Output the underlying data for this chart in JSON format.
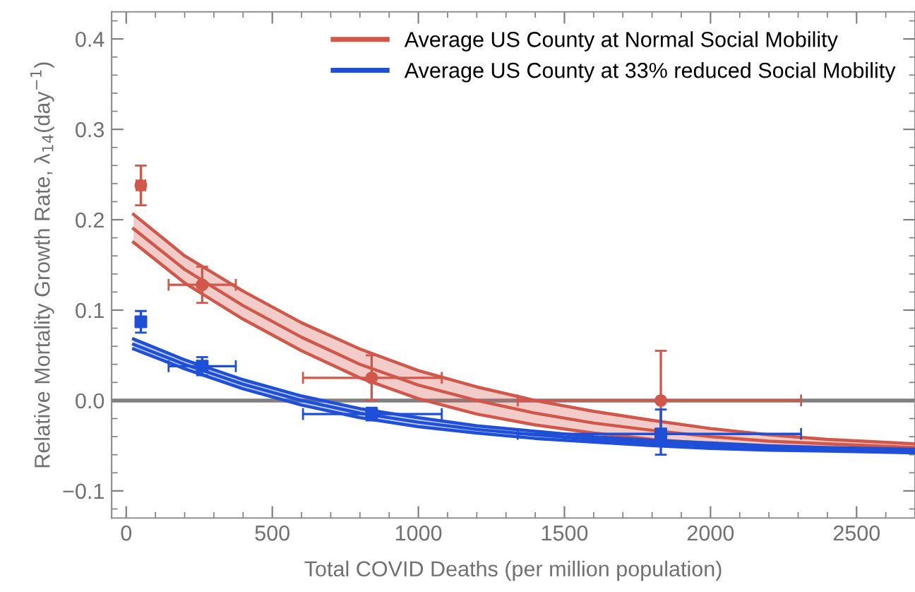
{
  "chart_data": {
    "type": "line",
    "xlabel": "Total COVID Deaths (per million population)",
    "ylabel": "Relative Mortality Growth Rate, λ$_{14}$(day$^{−1}$)",
    "xlim": [
      -50,
      2700
    ],
    "ylim": [
      -0.13,
      0.43
    ],
    "xticks": [
      0,
      500,
      1000,
      1500,
      2000,
      2500
    ],
    "yticks": [
      {
        "value": -0.1,
        "label": "−0.1"
      },
      {
        "value": 0,
        "label": "0.0"
      },
      0.1,
      0.2,
      0.3,
      0.4
    ],
    "grid": false,
    "legend": "top right",
    "ref_lines": [
      {
        "axis": "y",
        "value": 0,
        "color": "#808080"
      }
    ],
    "series": [
      {
        "name": "Average US County at Normal Social Mobility",
        "color": "#d0574a",
        "marker": "none",
        "x": [
          25,
          200,
          400,
          600,
          800,
          1000,
          1200,
          1400,
          1600,
          1800,
          2000,
          2200,
          2400,
          2700
        ],
        "values": [
          0.19,
          0.145,
          0.105,
          0.07,
          0.04,
          0.017,
          0.0,
          -0.014,
          -0.025,
          -0.033,
          -0.04,
          -0.045,
          -0.048,
          -0.052
        ],
        "upper": [
          0.206,
          0.16,
          0.121,
          0.086,
          0.057,
          0.033,
          0.015,
          0.0,
          -0.012,
          -0.022,
          -0.031,
          -0.038,
          -0.043,
          -0.048
        ],
        "lower": [
          0.175,
          0.13,
          0.09,
          0.055,
          0.025,
          0.002,
          -0.015,
          -0.027,
          -0.036,
          -0.043,
          -0.048,
          -0.051,
          -0.053,
          -0.055
        ]
      },
      {
        "color": "#d0574a",
        "marker": "none",
        "x": [
          25,
          200,
          400,
          600,
          800,
          1000,
          1200,
          1400,
          1600,
          1800,
          2000,
          2200,
          2400,
          2700
        ],
        "values": [
          0.206,
          0.16,
          0.121,
          0.086,
          0.057,
          0.033,
          0.015,
          0.0,
          -0.012,
          -0.022,
          -0.031,
          -0.038,
          -0.043,
          -0.048
        ]
      },
      {
        "color": "#d0574a",
        "marker": "none",
        "x": [
          25,
          200,
          400,
          600,
          800,
          1000,
          1200,
          1400,
          1600,
          1800,
          2000,
          2200,
          2400,
          2700
        ],
        "values": [
          0.175,
          0.13,
          0.09,
          0.055,
          0.025,
          0.002,
          -0.015,
          -0.027,
          -0.036,
          -0.043,
          -0.048,
          -0.051,
          -0.053,
          -0.055
        ]
      },
      {
        "name": "Average US County at 33% reduced Social Mobility",
        "color": "#1f4fd6",
        "marker": "none",
        "x": [
          25,
          200,
          400,
          600,
          800,
          1000,
          1200,
          1400,
          1600,
          1800,
          2000,
          2200,
          2400,
          2700
        ],
        "values": [
          0.062,
          0.04,
          0.018,
          0.0,
          -0.014,
          -0.024,
          -0.032,
          -0.038,
          -0.043,
          -0.047,
          -0.05,
          -0.052,
          -0.054,
          -0.056
        ],
        "upper": [
          0.068,
          0.045,
          0.023,
          0.005,
          -0.009,
          -0.019,
          -0.028,
          -0.034,
          -0.04,
          -0.044,
          -0.047,
          -0.05,
          -0.052,
          -0.054
        ],
        "lower": [
          0.057,
          0.035,
          0.013,
          -0.005,
          -0.019,
          -0.029,
          -0.036,
          -0.042,
          -0.046,
          -0.05,
          -0.053,
          -0.055,
          -0.056,
          -0.058
        ]
      },
      {
        "color": "#1f4fd6",
        "marker": "none",
        "x": [
          25,
          200,
          400,
          600,
          800,
          1000,
          1200,
          1400,
          1600,
          1800,
          2000,
          2200,
          2400,
          2700
        ],
        "values": [
          0.068,
          0.045,
          0.023,
          0.005,
          -0.009,
          -0.019,
          -0.028,
          -0.034,
          -0.04,
          -0.044,
          -0.047,
          -0.05,
          -0.052,
          -0.054
        ]
      },
      {
        "color": "#1f4fd6",
        "marker": "none",
        "x": [
          25,
          200,
          400,
          600,
          800,
          1000,
          1200,
          1400,
          1600,
          1800,
          2000,
          2200,
          2400,
          2700
        ],
        "values": [
          0.057,
          0.035,
          0.013,
          -0.005,
          -0.019,
          -0.029,
          -0.036,
          -0.042,
          -0.046,
          -0.05,
          -0.053,
          -0.055,
          -0.056,
          -0.058
        ]
      },
      {
        "type": "scatter",
        "color": "#d0574a",
        "marker": "circle",
        "x": [
          50,
          260,
          840,
          1830
        ],
        "values": [
          0.238,
          0.128,
          0.025,
          0.0
        ],
        "errors": [
          [
            0.216,
            0.26
          ],
          [
            0.108,
            0.148
          ],
          [
            0.0,
            0.05
          ],
          [
            -0.035,
            0.055
          ]
        ],
        "xerrors": [
          [
            35,
            65
          ],
          [
            145,
            375
          ],
          [
            605,
            1080
          ],
          [
            1340,
            2310
          ]
        ]
      },
      {
        "type": "scatter",
        "color": "#1f4fd6",
        "marker": "square",
        "x": [
          50,
          260,
          840,
          1830
        ],
        "values": [
          0.087,
          0.038,
          -0.015,
          -0.037
        ],
        "errors": [
          [
            0.075,
            0.099
          ],
          [
            0.028,
            0.048
          ],
          [
            -0.022,
            -0.008
          ],
          [
            -0.06,
            -0.01
          ]
        ],
        "xerrors": [
          [
            35,
            65
          ],
          [
            145,
            375
          ],
          [
            605,
            1080
          ],
          [
            1340,
            2310
          ]
        ]
      }
    ]
  }
}
